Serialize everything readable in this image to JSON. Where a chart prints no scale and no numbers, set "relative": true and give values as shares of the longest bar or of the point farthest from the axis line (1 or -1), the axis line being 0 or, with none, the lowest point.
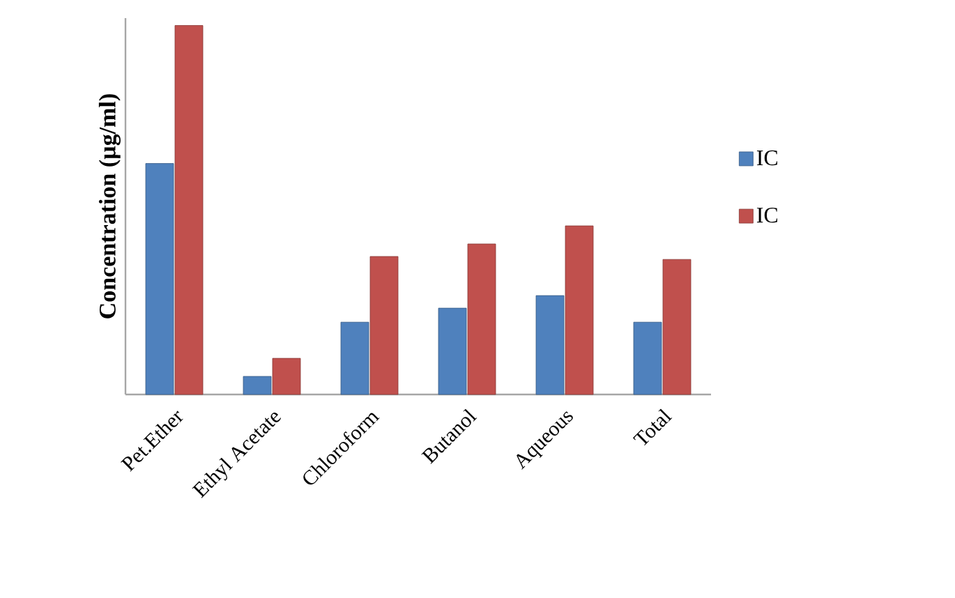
{
  "chart_data": {
    "type": "bar",
    "ylabel": "Concentration (µg/ml)",
    "categories": [
      "Pet.Ether",
      "Ethyl Acetate",
      "Chloroform",
      "Butanol",
      "Aqueous",
      "Total"
    ],
    "relative": true,
    "legend": "right",
    "series": [
      {
        "name": "IC",
        "color": "#4f81bd",
        "values": [
          0.626,
          0.049,
          0.196,
          0.234,
          0.268,
          0.196
        ]
      },
      {
        "name": "IC",
        "color": "#c0504d",
        "values": [
          1,
          0.098,
          0.374,
          0.408,
          0.457,
          0.366
        ]
      }
    ]
  }
}
